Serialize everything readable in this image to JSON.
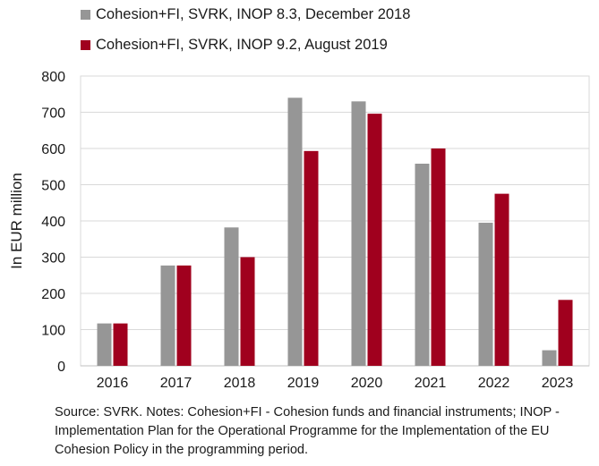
{
  "chart_data": {
    "type": "bar",
    "categories": [
      "2016",
      "2017",
      "2018",
      "2019",
      "2020",
      "2021",
      "2022",
      "2023"
    ],
    "series": [
      {
        "name": "Cohesion+FI, SVRK, INOP 8.3,  December 2018",
        "color": "#969696",
        "values": [
          117,
          277,
          382,
          740,
          730,
          558,
          395,
          43
        ]
      },
      {
        "name": "Cohesion+FI, SVRK, INOP 9.2, August 2019",
        "color": "#a0001e",
        "values": [
          117,
          277,
          300,
          593,
          696,
          600,
          475,
          182
        ]
      }
    ],
    "title": "",
    "xlabel": "",
    "ylabel": "In EUR million",
    "ylim": [
      0,
      800
    ],
    "yticks": [
      "0",
      "100",
      "200",
      "300",
      "400",
      "500",
      "600",
      "700",
      "800"
    ],
    "grid": true,
    "legend": "top"
  },
  "note": "Source: SVRK. Notes: Cohesion+FI - Cohesion funds and financial instruments; INOP - Implementation Plan for the Operational Programme for the Implementation of the EU Cohesion Policy in the programming period."
}
